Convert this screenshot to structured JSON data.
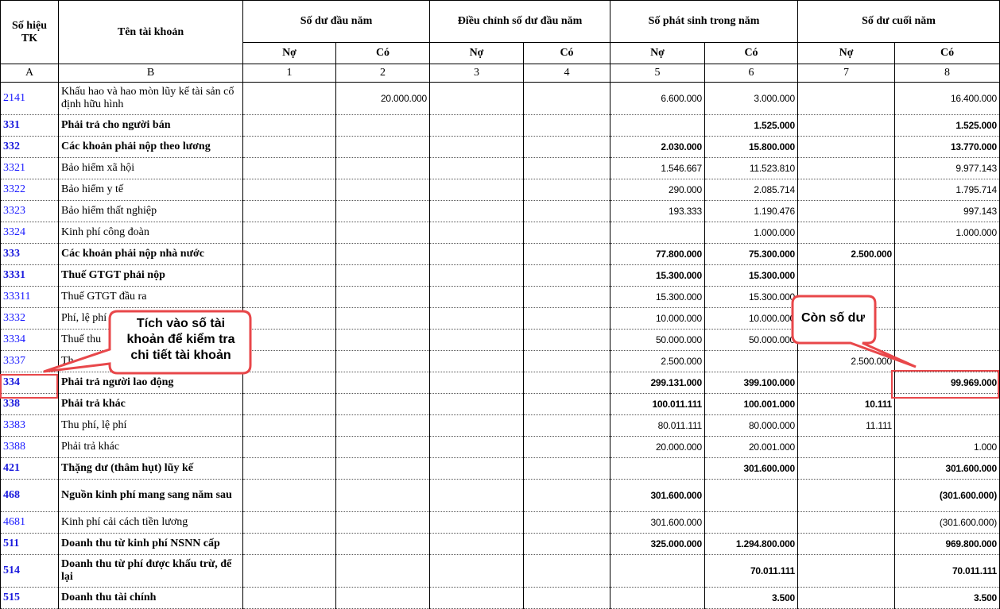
{
  "header": {
    "col_code": "Số hiệu TK",
    "col_name": "Tên tài khoản",
    "groups": [
      "Số dư đầu năm",
      "Điều chỉnh số dư đầu năm",
      "Số phát sinh trong năm",
      "Số dư cuối năm"
    ],
    "debit": "Nợ",
    "credit": "Có",
    "index": [
      "A",
      "B",
      "1",
      "2",
      "3",
      "4",
      "5",
      "6",
      "7",
      "8"
    ]
  },
  "rows": [
    {
      "code": "2141",
      "name": "Khấu hao và hao mòn lũy kế tài sản cố định hữu hình",
      "bold": false,
      "tall": true,
      "v": [
        "",
        "20.000.000",
        "",
        "",
        "6.600.000",
        "3.000.000",
        "",
        "16.400.000"
      ]
    },
    {
      "code": "331",
      "name": "Phải trả cho người bán",
      "bold": true,
      "v": [
        "",
        "",
        "",
        "",
        "",
        "1.525.000",
        "",
        "1.525.000"
      ]
    },
    {
      "code": "332",
      "name": "Các khoản phải nộp theo lương",
      "bold": true,
      "v": [
        "",
        "",
        "",
        "",
        "2.030.000",
        "15.800.000",
        "",
        "13.770.000"
      ]
    },
    {
      "code": "3321",
      "name": "Bảo hiểm xã hội",
      "bold": false,
      "v": [
        "",
        "",
        "",
        "",
        "1.546.667",
        "11.523.810",
        "",
        "9.977.143"
      ]
    },
    {
      "code": "3322",
      "name": "Bảo hiểm y tế",
      "bold": false,
      "v": [
        "",
        "",
        "",
        "",
        "290.000",
        "2.085.714",
        "",
        "1.795.714"
      ]
    },
    {
      "code": "3323",
      "name": "Bảo hiểm thất nghiệp",
      "bold": false,
      "v": [
        "",
        "",
        "",
        "",
        "193.333",
        "1.190.476",
        "",
        "997.143"
      ]
    },
    {
      "code": "3324",
      "name": "Kinh phí công đoàn",
      "bold": false,
      "v": [
        "",
        "",
        "",
        "",
        "",
        "1.000.000",
        "",
        "1.000.000"
      ]
    },
    {
      "code": "333",
      "name": "Các khoản phải nộp nhà nước",
      "bold": true,
      "v": [
        "",
        "",
        "",
        "",
        "77.800.000",
        "75.300.000",
        "2.500.000",
        ""
      ]
    },
    {
      "code": "3331",
      "name": "Thuế GTGT phải nộp",
      "bold": true,
      "v": [
        "",
        "",
        "",
        "",
        "15.300.000",
        "15.300.000",
        "",
        ""
      ]
    },
    {
      "code": "33311",
      "name": "Thuế GTGT đầu ra",
      "bold": false,
      "v": [
        "",
        "",
        "",
        "",
        "15.300.000",
        "15.300.000",
        "",
        ""
      ]
    },
    {
      "code": "3332",
      "name": "Phí, lệ phí",
      "bold": false,
      "v": [
        "",
        "",
        "",
        "",
        "10.000.000",
        "10.000.000",
        "",
        ""
      ]
    },
    {
      "code": "3334",
      "name": "Thuế thu",
      "bold": false,
      "v": [
        "",
        "",
        "",
        "",
        "50.000.000",
        "50.000.000",
        "",
        ""
      ]
    },
    {
      "code": "3337",
      "name": "Th",
      "bold": false,
      "v": [
        "",
        "",
        "",
        "",
        "2.500.000",
        "",
        "2.500.000",
        ""
      ]
    },
    {
      "code": "334",
      "name": "Phải trả người lao động",
      "bold": true,
      "v": [
        "",
        "",
        "",
        "",
        "299.131.000",
        "399.100.000",
        "",
        "99.969.000"
      ]
    },
    {
      "code": "338",
      "name": "Phải trả khác",
      "bold": true,
      "v": [
        "",
        "",
        "",
        "",
        "100.011.111",
        "100.001.000",
        "10.111",
        ""
      ]
    },
    {
      "code": "3383",
      "name": "Thu phí, lệ phí",
      "bold": false,
      "v": [
        "",
        "",
        "",
        "",
        "80.011.111",
        "80.000.000",
        "11.111",
        ""
      ]
    },
    {
      "code": "3388",
      "name": "Phải trả khác",
      "bold": false,
      "v": [
        "",
        "",
        "",
        "",
        "20.000.000",
        "20.001.000",
        "",
        "1.000"
      ]
    },
    {
      "code": "421",
      "name": "Thặng dư (thâm hụt) lũy kế",
      "bold": true,
      "v": [
        "",
        "",
        "",
        "",
        "",
        "301.600.000",
        "",
        "301.600.000"
      ]
    },
    {
      "code": "468",
      "name": "Nguồn kinh phí mang sang năm sau",
      "bold": true,
      "tall": true,
      "v": [
        "",
        "",
        "",
        "",
        "301.600.000",
        "",
        "",
        "(301.600.000)"
      ]
    },
    {
      "code": "4681",
      "name": "Kinh phí cải cách tiền lương",
      "bold": false,
      "v": [
        "",
        "",
        "",
        "",
        "301.600.000",
        "",
        "",
        "(301.600.000)"
      ]
    },
    {
      "code": "511",
      "name": "Doanh thu từ kinh phí NSNN cấp",
      "bold": true,
      "v": [
        "",
        "",
        "",
        "",
        "325.000.000",
        "1.294.800.000",
        "",
        "969.800.000"
      ]
    },
    {
      "code": "514",
      "name": "Doanh thu từ phí được khấu trừ, để lại",
      "bold": true,
      "tall": true,
      "v": [
        "",
        "",
        "",
        "",
        "",
        "70.011.111",
        "",
        "70.011.111"
      ]
    },
    {
      "code": "515",
      "name": "Doanh thu tài chính",
      "bold": true,
      "v": [
        "",
        "",
        "",
        "",
        "",
        "3.500",
        "",
        "3.500"
      ]
    }
  ],
  "annotations": {
    "callout_account": "Tích vào số tài khoản để kiểm tra chi tiết tài khoản",
    "callout_balance": "Còn số dư",
    "color": "#e8474a"
  }
}
